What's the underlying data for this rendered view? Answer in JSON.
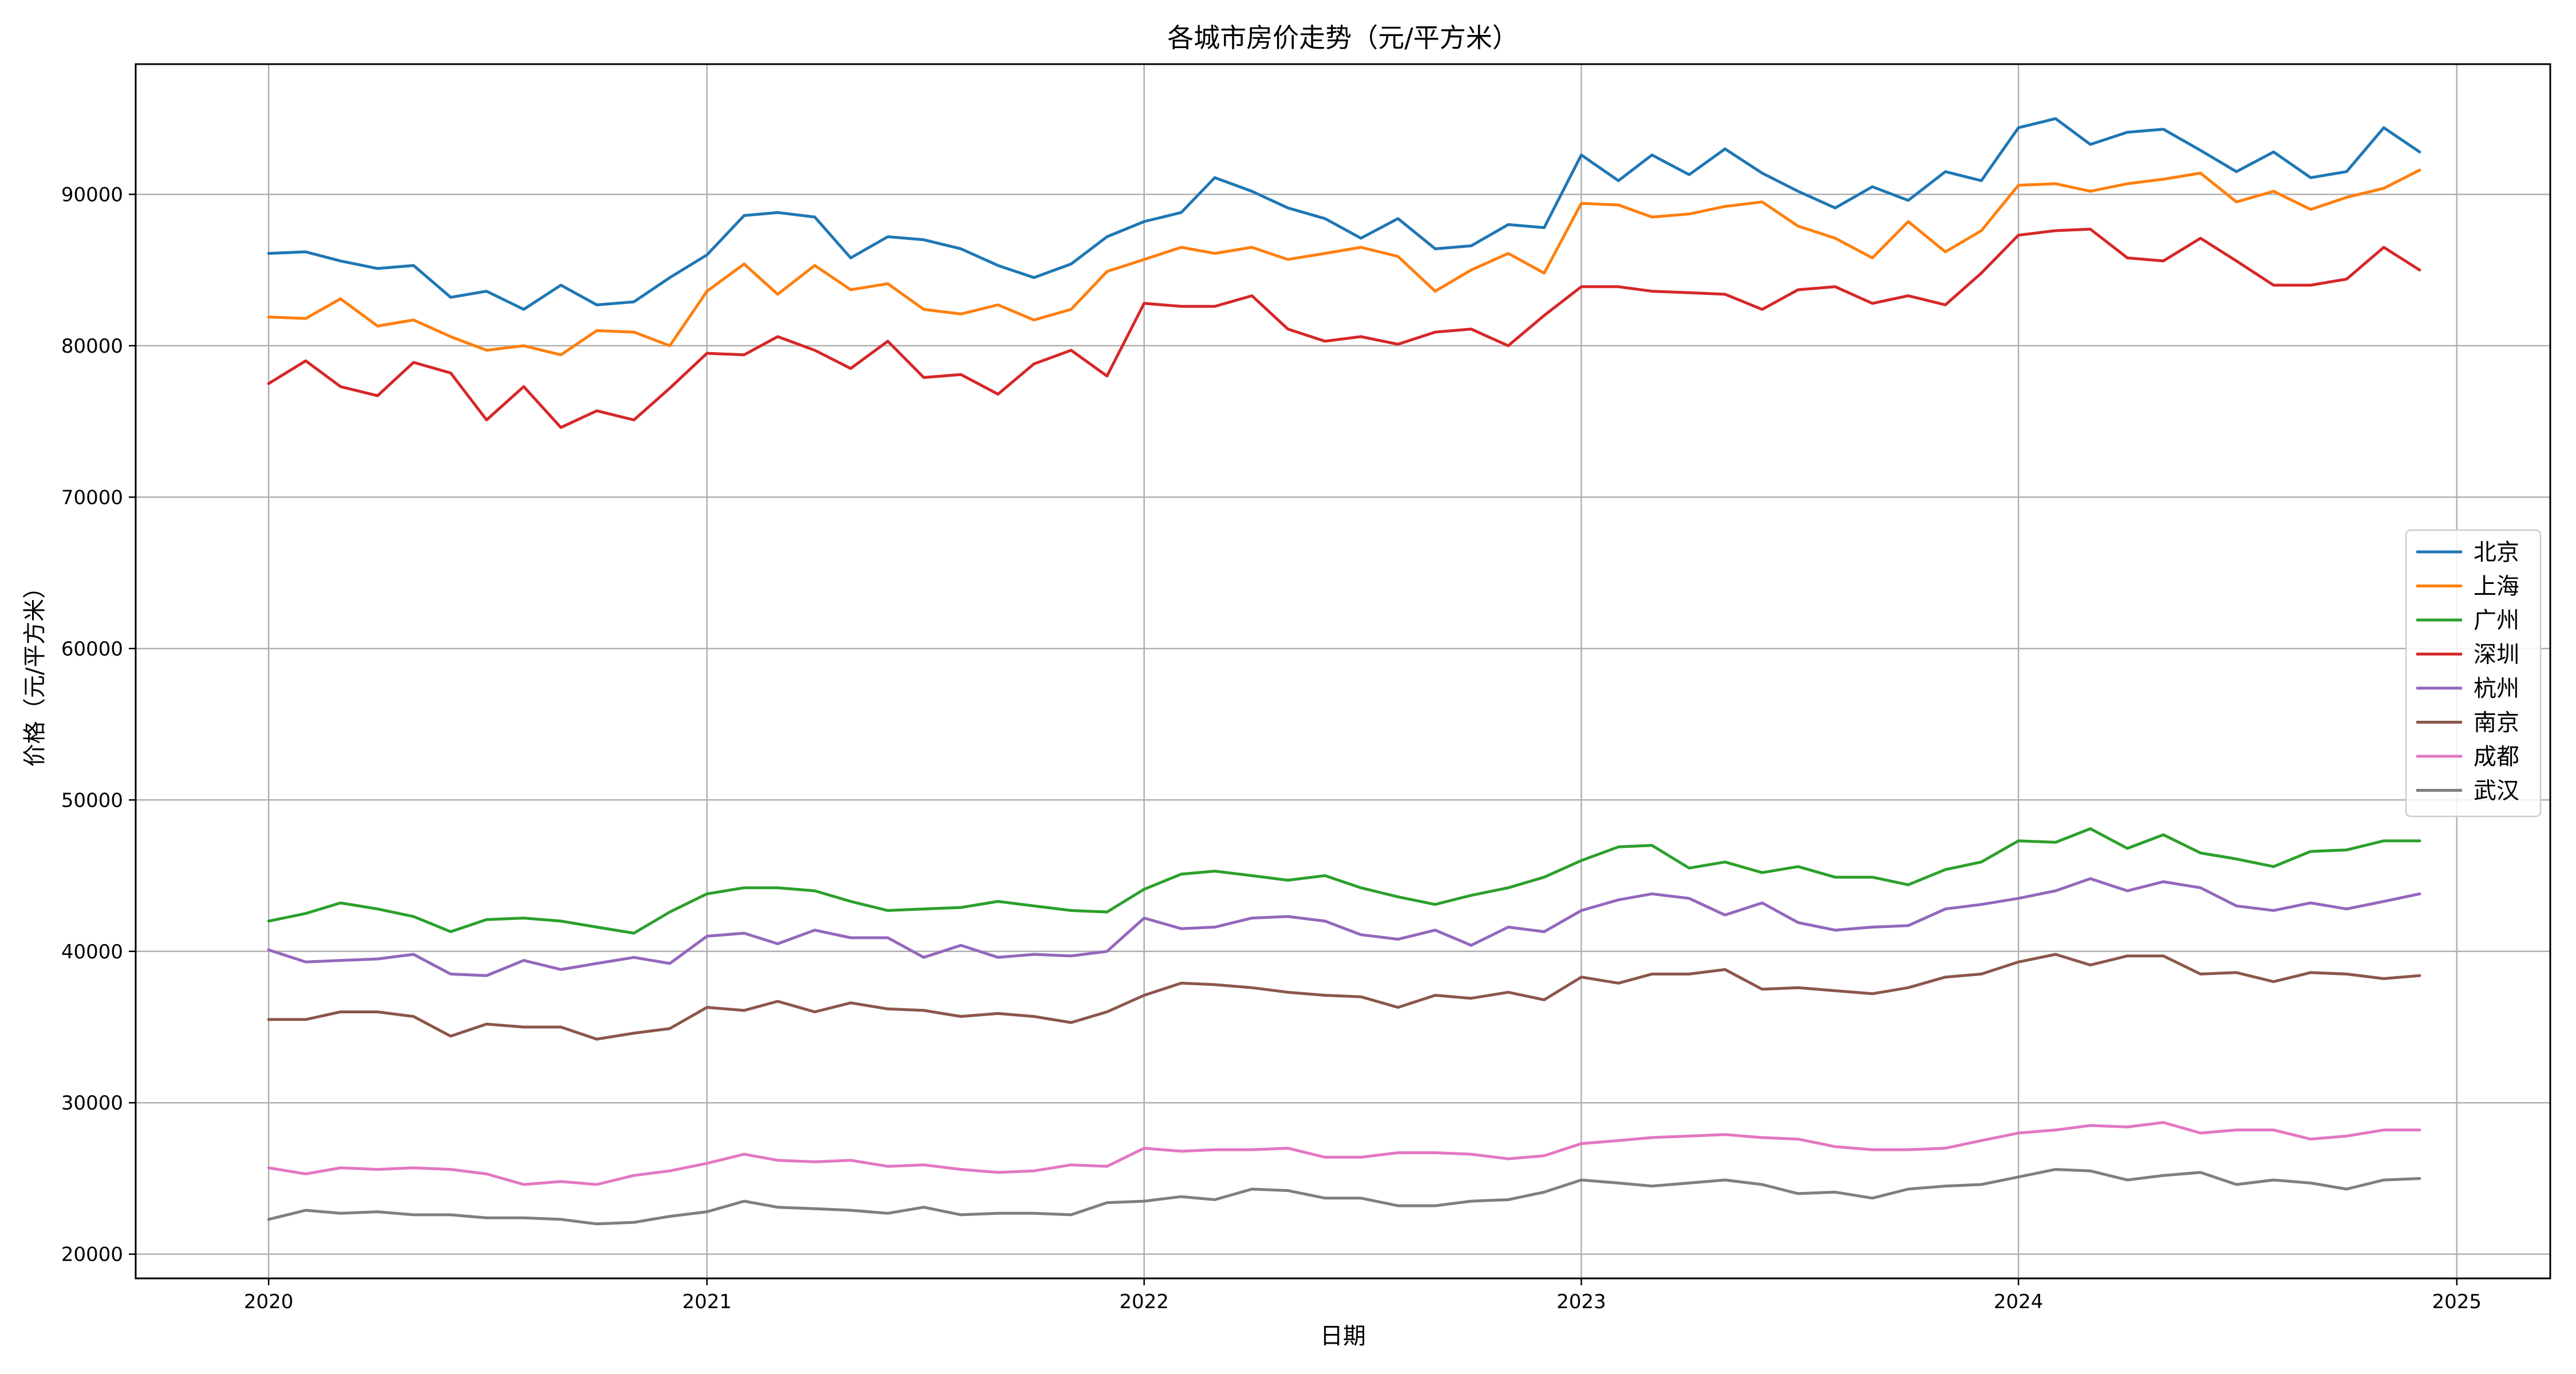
{
  "chart_data": {
    "type": "line",
    "title": "各城市房价走势（元/平方米）",
    "xlabel": "日期",
    "ylabel": "价格（元/平方米）",
    "x_ticks": [
      "2020",
      "2021",
      "2022",
      "2023",
      "2024",
      "2025"
    ],
    "y_ticks": [
      "20000",
      "30000",
      "40000",
      "50000",
      "60000",
      "70000",
      "80000",
      "90000"
    ],
    "xlim": [
      "2019-09-12",
      "2025-03-20"
    ],
    "ylim": [
      18400,
      98600
    ],
    "grid": true,
    "legend_position": "center-right",
    "x": [
      "2020-01",
      "2020-02",
      "2020-03",
      "2020-04",
      "2020-05",
      "2020-06",
      "2020-07",
      "2020-08",
      "2020-09",
      "2020-10",
      "2020-11",
      "2020-12",
      "2021-01",
      "2021-02",
      "2021-03",
      "2021-04",
      "2021-05",
      "2021-06",
      "2021-07",
      "2021-08",
      "2021-09",
      "2021-10",
      "2021-11",
      "2021-12",
      "2022-01",
      "2022-02",
      "2022-03",
      "2022-04",
      "2022-05",
      "2022-06",
      "2022-07",
      "2022-08",
      "2022-09",
      "2022-10",
      "2022-11",
      "2022-12",
      "2023-01",
      "2023-02",
      "2023-03",
      "2023-04",
      "2023-05",
      "2023-06",
      "2023-07",
      "2023-08",
      "2023-09",
      "2023-10",
      "2023-11",
      "2023-12",
      "2024-01",
      "2024-02",
      "2024-03",
      "2024-04",
      "2024-05",
      "2024-06",
      "2024-07",
      "2024-08",
      "2024-09",
      "2024-10",
      "2024-11",
      "2024-12"
    ],
    "series": [
      {
        "name": "北京",
        "color": "#1f77b4",
        "values": [
          86100,
          86200,
          85600,
          85100,
          85300,
          83200,
          83600,
          82400,
          84000,
          82700,
          82900,
          84500,
          86000,
          88600,
          88800,
          88500,
          85800,
          87200,
          87000,
          86400,
          85300,
          84500,
          85400,
          87200,
          88200,
          88800,
          91100,
          90200,
          89100,
          88400,
          87100,
          88400,
          86400,
          86600,
          88000,
          87800,
          92600,
          90900,
          92600,
          91300,
          93000,
          91400,
          90200,
          89100,
          90500,
          89600,
          91500,
          90900,
          94400,
          95000,
          93300,
          94100,
          94300,
          92900,
          91500,
          92800,
          91100,
          91500,
          94400,
          92800
        ]
      },
      {
        "name": "上海",
        "color": "#ff7f0e",
        "values": [
          81900,
          81800,
          83100,
          81300,
          81700,
          80600,
          79700,
          80000,
          79400,
          81000,
          80900,
          80000,
          83600,
          85400,
          83400,
          85300,
          83700,
          84100,
          82400,
          82100,
          82700,
          81700,
          82400,
          84900,
          85700,
          86500,
          86100,
          86500,
          85700,
          86100,
          86500,
          85900,
          83600,
          85000,
          86100,
          84800,
          89400,
          89300,
          88500,
          88700,
          89200,
          89500,
          87900,
          87100,
          85800,
          88200,
          86200,
          87600,
          90600,
          90700,
          90200,
          90700,
          91000,
          91400,
          89500,
          90200,
          89000,
          89800,
          90400,
          91600
        ]
      },
      {
        "name": "广州",
        "color": "#2ca02c",
        "values": [
          42000,
          42500,
          43200,
          42800,
          42300,
          41300,
          42100,
          42200,
          42000,
          41600,
          41200,
          42600,
          43800,
          44200,
          44200,
          44000,
          43300,
          42700,
          42800,
          42900,
          43300,
          43000,
          42700,
          42600,
          44100,
          45100,
          45300,
          45000,
          44700,
          45000,
          44200,
          43600,
          43100,
          43700,
          44200,
          44900,
          46000,
          46900,
          47000,
          45500,
          45900,
          45200,
          45600,
          44900,
          44900,
          44400,
          45400,
          45900,
          47300,
          47200,
          48100,
          46800,
          47700,
          46500,
          46100,
          45600,
          46600,
          46700,
          47300,
          47300
        ]
      },
      {
        "name": "深圳",
        "color": "#d62728",
        "values": [
          77500,
          79000,
          77300,
          76700,
          78900,
          78200,
          75100,
          77300,
          74600,
          75700,
          75100,
          77200,
          79500,
          79400,
          80600,
          79700,
          78500,
          80300,
          77900,
          78100,
          76800,
          78800,
          79700,
          78000,
          82800,
          82600,
          82600,
          83300,
          81100,
          80300,
          80600,
          80100,
          80900,
          81100,
          80000,
          82000,
          83900,
          83900,
          83600,
          83500,
          83400,
          82400,
          83700,
          83900,
          82800,
          83300,
          82700,
          84800,
          87300,
          87600,
          87700,
          85800,
          85600,
          87100,
          85600,
          84000,
          84000,
          84400,
          86500,
          85000
        ]
      },
      {
        "name": "杭州",
        "color": "#9467bd",
        "values": [
          40100,
          39300,
          39400,
          39500,
          39800,
          38500,
          38400,
          39400,
          38800,
          39200,
          39600,
          39200,
          41000,
          41200,
          40500,
          41400,
          40900,
          40900,
          39600,
          40400,
          39600,
          39800,
          39700,
          40000,
          42200,
          41500,
          41600,
          42200,
          42300,
          42000,
          41100,
          40800,
          41400,
          40400,
          41600,
          41300,
          42700,
          43400,
          43800,
          43500,
          42400,
          43200,
          41900,
          41400,
          41600,
          41700,
          42800,
          43100,
          43500,
          44000,
          44800,
          44000,
          44600,
          44200,
          43000,
          42700,
          43200,
          42800,
          43300,
          43800
        ]
      },
      {
        "name": "南京",
        "color": "#8c564b",
        "values": [
          35500,
          35500,
          36000,
          36000,
          35700,
          34400,
          35200,
          35000,
          35000,
          34200,
          34600,
          34900,
          36300,
          36100,
          36700,
          36000,
          36600,
          36200,
          36100,
          35700,
          35900,
          35700,
          35300,
          36000,
          37100,
          37900,
          37800,
          37600,
          37300,
          37100,
          37000,
          36300,
          37100,
          36900,
          37300,
          36800,
          38300,
          37900,
          38500,
          38500,
          38800,
          37500,
          37600,
          37400,
          37200,
          37600,
          38300,
          38500,
          39300,
          39800,
          39100,
          39700,
          39700,
          38500,
          38600,
          38000,
          38600,
          38500,
          38200,
          38400
        ]
      },
      {
        "name": "成都",
        "color": "#e377c2",
        "values": [
          25700,
          25300,
          25700,
          25600,
          25700,
          25600,
          25300,
          24600,
          24800,
          24600,
          25200,
          25500,
          26000,
          26600,
          26200,
          26100,
          26200,
          25800,
          25900,
          25600,
          25400,
          25500,
          25900,
          25800,
          27000,
          26800,
          26900,
          26900,
          27000,
          26400,
          26400,
          26700,
          26700,
          26600,
          26300,
          26500,
          27300,
          27500,
          27700,
          27800,
          27900,
          27700,
          27600,
          27100,
          26900,
          26900,
          27000,
          27500,
          28000,
          28200,
          28500,
          28400,
          28700,
          28000,
          28200,
          28200,
          27600,
          27800,
          28200,
          28200
        ]
      },
      {
        "name": "武汉",
        "color": "#7f7f7f",
        "values": [
          22300,
          22900,
          22700,
          22800,
          22600,
          22600,
          22400,
          22400,
          22300,
          22000,
          22100,
          22500,
          22800,
          23500,
          23100,
          23000,
          22900,
          22700,
          23100,
          22600,
          22700,
          22700,
          22600,
          23400,
          23500,
          23800,
          23600,
          24300,
          24200,
          23700,
          23700,
          23200,
          23200,
          23500,
          23600,
          24100,
          24900,
          24700,
          24500,
          24700,
          24900,
          24600,
          24000,
          24100,
          23700,
          24300,
          24500,
          24600,
          25100,
          25600,
          25500,
          24900,
          25200,
          25400,
          24600,
          24900,
          24700,
          24300,
          24900,
          25000
        ]
      }
    ]
  }
}
